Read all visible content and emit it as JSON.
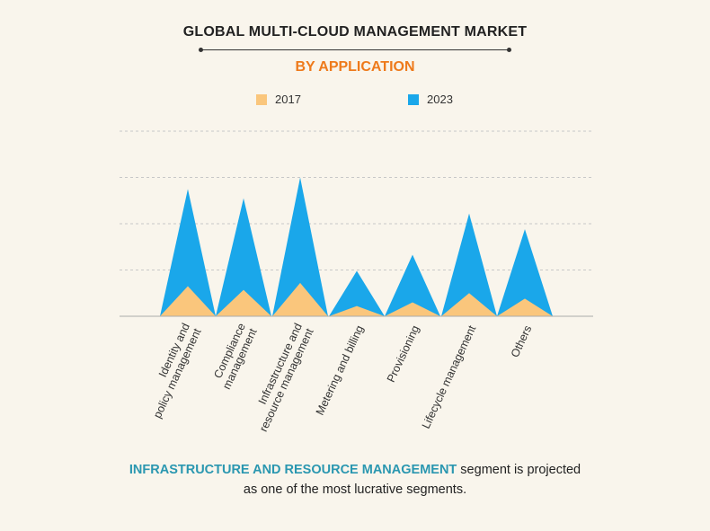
{
  "title": "GLOBAL MULTI-CLOUD MANAGEMENT MARKET",
  "subtitle": "BY APPLICATION",
  "colors": {
    "s2017": "#fac67c",
    "s2023": "#1aa7ea",
    "subtitle": "#ee7a1b",
    "highlight": "#2a97b0",
    "grid": "#c8c8c8",
    "baseline": "#aaaaaa"
  },
  "footer": {
    "highlight": "INFRASTRUCTURE AND RESOURCE MANAGEMENT",
    "rest_line1": " segment is projected",
    "line2": "as one of the most lucrative segments."
  },
  "chart_data": {
    "type": "area",
    "categories": [
      [
        "Identity and",
        "policy management"
      ],
      [
        "Compliance",
        "management"
      ],
      [
        "Infrastructure and",
        "resource management"
      ],
      [
        "Metering and billing"
      ],
      [
        "Provisioning"
      ],
      [
        "Lifecycle management"
      ],
      [
        "Others"
      ]
    ],
    "series": [
      {
        "name": "2017",
        "values": [
          0.65,
          0.57,
          0.72,
          0.22,
          0.3,
          0.5,
          0.38
        ]
      },
      {
        "name": "2023",
        "values": [
          2.75,
          2.55,
          3.0,
          0.98,
          1.33,
          2.22,
          1.88
        ]
      }
    ],
    "ylim": [
      0,
      4
    ],
    "grid": true,
    "legend": "top"
  }
}
